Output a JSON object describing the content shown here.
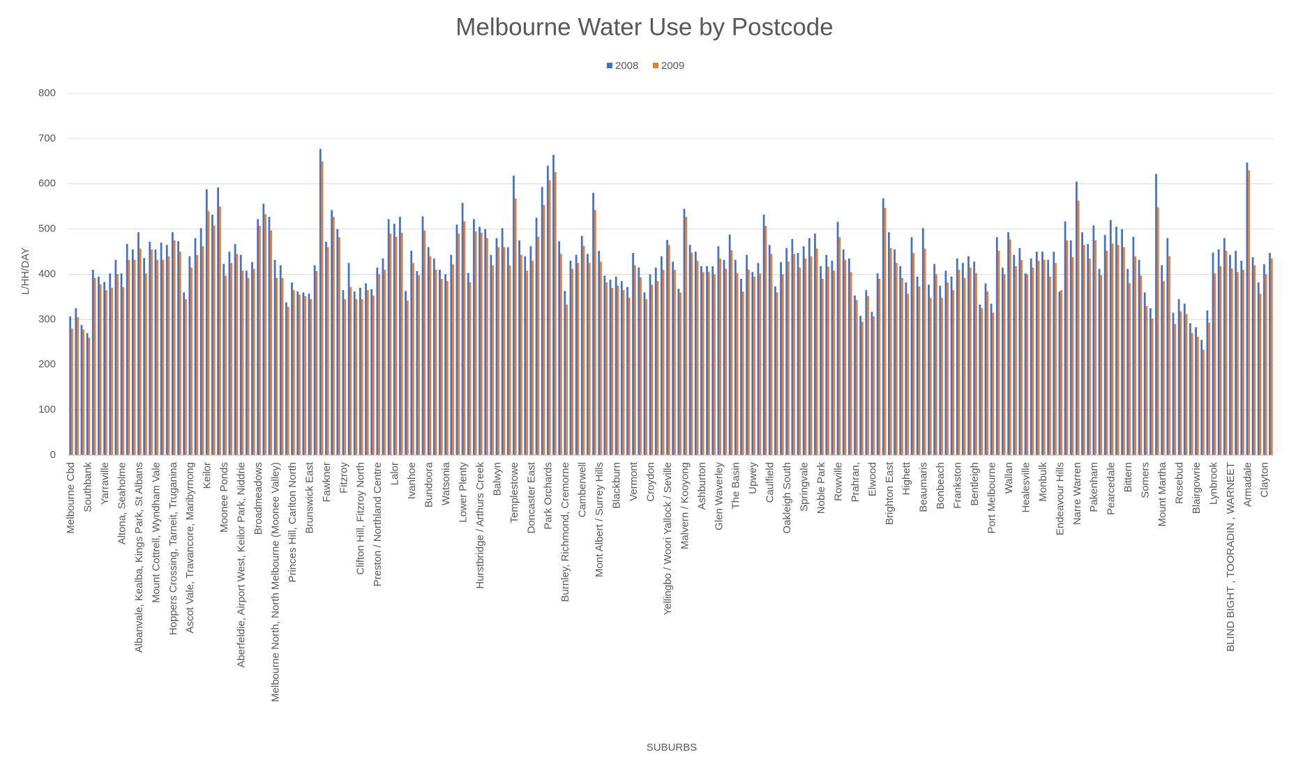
{
  "chart_data": {
    "type": "bar",
    "title": "Melbourne Water Use by Postcode",
    "x_label": "SUBURBS",
    "y_label": "L/HH/DAY",
    "legend": "top",
    "grid": true,
    "ylim": [
      0,
      800
    ],
    "yticks": [
      0,
      100,
      200,
      300,
      400,
      500,
      600,
      700,
      800
    ],
    "categories": [
      "Melbourne Cbd",
      null,
      null,
      "Southbank",
      null,
      null,
      "Yarraville",
      null,
      null,
      "Altona, Seaholme",
      null,
      null,
      "Albanvale, Kealba, Kings Park, St Albans",
      null,
      null,
      "Mount Cottrell, Wyndham Vale",
      null,
      null,
      "Hoppers Crossing, Tarneit, Truganina",
      null,
      null,
      "Ascot Vale, Travancore, Maribyrnong",
      null,
      null,
      "Keilor",
      null,
      null,
      "Moonee Ponds",
      null,
      null,
      "Aberfeldie, Airport West, Keilor Park, Niddrie",
      null,
      null,
      "Broadmeadows",
      null,
      null,
      "Melbourne North, North Melbourne (Moonee Valley)",
      null,
      null,
      "Princes Hill, Carlton North",
      null,
      null,
      "Brunswick East",
      null,
      null,
      "Fawkner",
      null,
      null,
      "Fitzroy",
      null,
      null,
      "Clifton Hill, Fitzroy North",
      null,
      null,
      "Preston / Northland Centre",
      null,
      null,
      "Lalor",
      null,
      null,
      "Ivanhoe",
      null,
      null,
      "Bundoora",
      null,
      null,
      "Watsonia",
      null,
      null,
      "Lower Plenty",
      null,
      null,
      "Hurstbridge / Arthurs Creek",
      null,
      null,
      "Balwyn",
      null,
      null,
      "Templestowe",
      null,
      null,
      "Doncaster East",
      null,
      null,
      "Park Orchards",
      null,
      null,
      "Burnley, Richmond, Cremorne",
      null,
      null,
      "Camberwell",
      null,
      null,
      "Mont Albert / Surrey Hills",
      null,
      null,
      "Blackburn",
      null,
      null,
      "Vermont",
      null,
      null,
      "Croydon",
      null,
      null,
      "Yellingbo / Woori Yallock / Seville",
      null,
      null,
      "Malvern / Kooyong",
      null,
      null,
      "Ashburton",
      null,
      null,
      "Glen Waverley",
      null,
      null,
      "The Basin",
      null,
      null,
      "Upwey",
      null,
      null,
      "Caulfield",
      null,
      null,
      "Oakleigh South",
      null,
      null,
      "Springvale",
      null,
      null,
      "Noble Park",
      null,
      null,
      "Rowville",
      null,
      null,
      "Prahran,",
      null,
      null,
      "Elwood",
      null,
      null,
      "Brighton East",
      null,
      null,
      "Highett",
      null,
      null,
      "Beaumaris",
      null,
      null,
      "Bonbeach",
      null,
      null,
      "Frankston",
      null,
      null,
      "Bentleigh",
      null,
      null,
      "Port Melbourne",
      null,
      null,
      "Wallan",
      null,
      null,
      "Healesville",
      null,
      null,
      "Monbulk",
      null,
      null,
      "Endeavour Hills",
      null,
      null,
      "Narre Warren",
      null,
      null,
      "Pakenham",
      null,
      null,
      "Pearcedale",
      null,
      null,
      "Bittern",
      null,
      null,
      "Somers",
      null,
      null,
      "Mount Martha",
      null,
      null,
      "Rosebud",
      null,
      null,
      "Blairgowrie",
      null,
      null,
      "Lynbrook",
      null,
      null,
      "BLIND BIGHT , TOORADIN , WARNEET",
      null,
      null,
      "Armadale",
      null,
      null,
      "Clayton",
      null
    ],
    "series": [
      {
        "name": "2008",
        "color": "#4472c4",
        "values": [
          307,
          325,
          288,
          270,
          410,
          395,
          383,
          402,
          432,
          402,
          467,
          455,
          493,
          436,
          472,
          455,
          470,
          465,
          493,
          473,
          360,
          440,
          480,
          502,
          588,
          532,
          592,
          423,
          450,
          467,
          443,
          408,
          427,
          522,
          556,
          527,
          432,
          420,
          338,
          382,
          362,
          360,
          357,
          420,
          677,
          472,
          542,
          500,
          365,
          425,
          362,
          370,
          380,
          367,
          415,
          435,
          522,
          512,
          527,
          363,
          452,
          407,
          528,
          460,
          435,
          410,
          400,
          443,
          510,
          558,
          403,
          522,
          505,
          500,
          443,
          480,
          502,
          460,
          618,
          475,
          440,
          462,
          525,
          593,
          640,
          664,
          473,
          363,
          430,
          443,
          485,
          445,
          580,
          452,
          397,
          388,
          395,
          385,
          372,
          447,
          415,
          360,
          400,
          415,
          440,
          476,
          428,
          368,
          545,
          465,
          450,
          418,
          418,
          418,
          462,
          432,
          488,
          432,
          390,
          443,
          405,
          425,
          532,
          465,
          373,
          427,
          458,
          478,
          447,
          462,
          480,
          490,
          418,
          443,
          430,
          516,
          455,
          435,
          353,
          308,
          365,
          317,
          402,
          568,
          493,
          455,
          418,
          382,
          482,
          395,
          502,
          377,
          423,
          375,
          408,
          395,
          435,
          425,
          440,
          428,
          333,
          380,
          335,
          482,
          415,
          493,
          443,
          458,
          402,
          435,
          450,
          450,
          432,
          450,
          362,
          517,
          475,
          605,
          493,
          467,
          508,
          412,
          487,
          520,
          505,
          500,
          412,
          483,
          432,
          360,
          325,
          622,
          420,
          480,
          315,
          345,
          335,
          292,
          283,
          255,
          320,
          448,
          455,
          480,
          443,
          452,
          430,
          647,
          438,
          382,
          422,
          447
        ]
      },
      {
        "name": "2009",
        "color": "#ed7d31",
        "values": [
          280,
          305,
          278,
          260,
          392,
          378,
          365,
          370,
          400,
          372,
          432,
          432,
          457,
          402,
          455,
          432,
          432,
          440,
          475,
          450,
          345,
          415,
          443,
          462,
          540,
          508,
          550,
          397,
          425,
          445,
          408,
          392,
          412,
          507,
          533,
          497,
          392,
          392,
          328,
          365,
          355,
          352,
          345,
          407,
          650,
          460,
          527,
          482,
          345,
          372,
          345,
          345,
          365,
          353,
          400,
          410,
          490,
          483,
          492,
          342,
          425,
          398,
          497,
          440,
          410,
          390,
          385,
          422,
          490,
          517,
          382,
          495,
          492,
          480,
          420,
          460,
          460,
          420,
          568,
          443,
          408,
          430,
          483,
          553,
          608,
          626,
          445,
          333,
          412,
          425,
          463,
          425,
          542,
          428,
          382,
          370,
          375,
          365,
          348,
          420,
          393,
          345,
          377,
          385,
          410,
          465,
          410,
          360,
          527,
          448,
          430,
          405,
          405,
          400,
          435,
          412,
          453,
          403,
          362,
          410,
          395,
          402,
          507,
          445,
          360,
          400,
          428,
          445,
          415,
          435,
          440,
          457,
          390,
          417,
          408,
          482,
          432,
          405,
          343,
          295,
          352,
          307,
          390,
          547,
          458,
          425,
          392,
          357,
          447,
          373,
          457,
          348,
          400,
          348,
          382,
          365,
          410,
          392,
          415,
          403,
          325,
          362,
          315,
          452,
          400,
          477,
          418,
          432,
          400,
          415,
          430,
          432,
          395,
          425,
          365,
          475,
          438,
          563,
          465,
          435,
          475,
          398,
          452,
          468,
          465,
          460,
          380,
          440,
          397,
          330,
          302,
          548,
          385,
          440,
          290,
          318,
          312,
          270,
          262,
          233,
          293,
          402,
          418,
          452,
          413,
          405,
          410,
          630,
          420,
          357,
          400,
          435
        ]
      }
    ]
  }
}
